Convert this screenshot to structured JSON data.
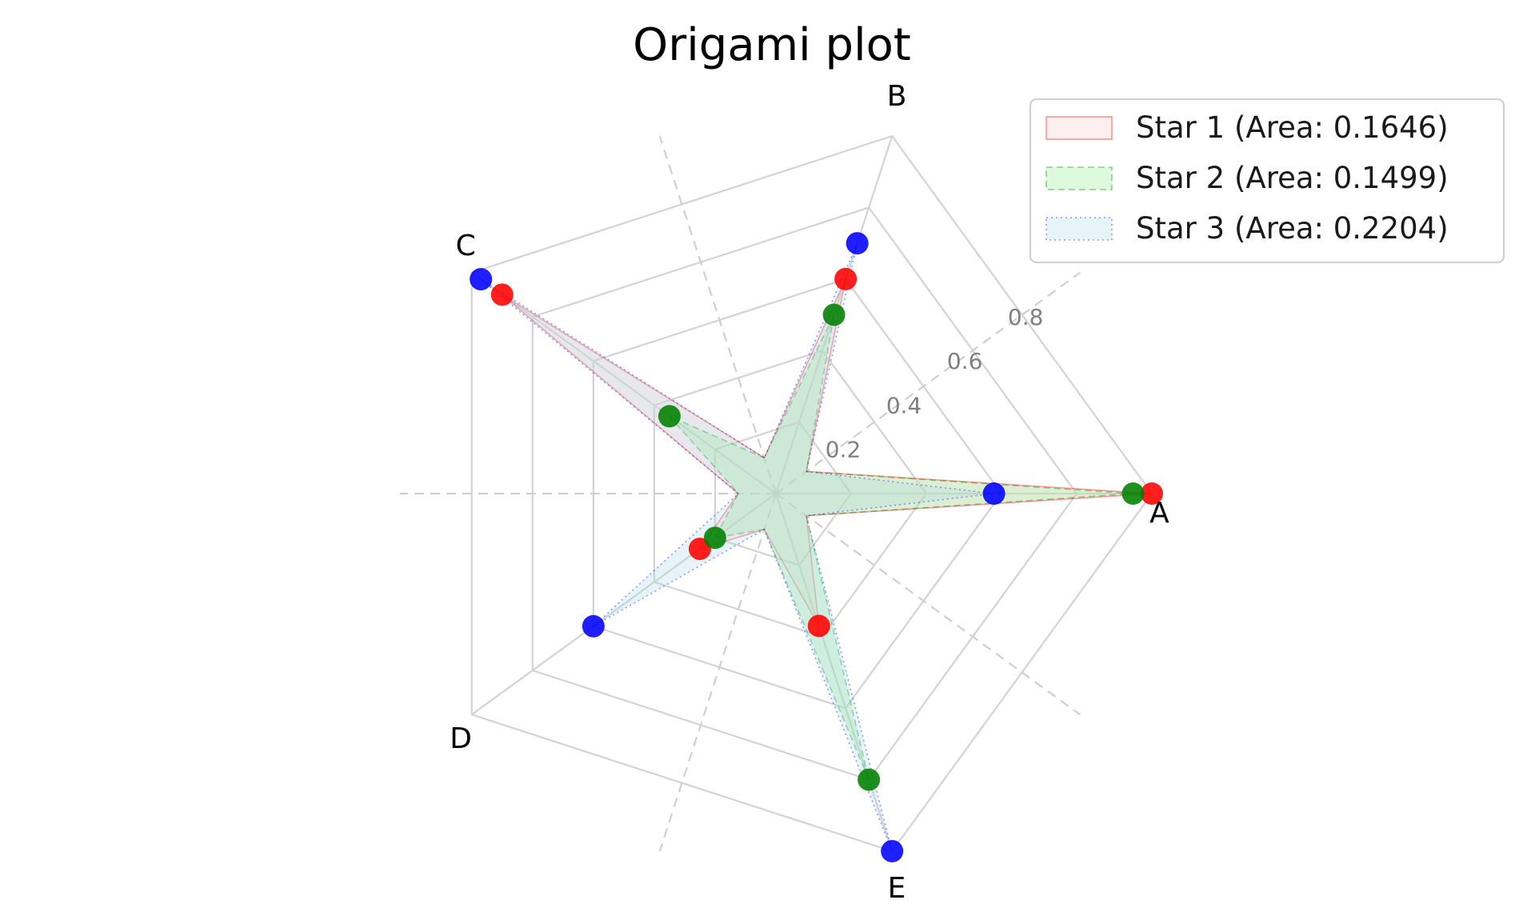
{
  "chart_data": {
    "type": "radar",
    "title": "Origami plot",
    "axes": [
      "A",
      "B",
      "C",
      "D",
      "E"
    ],
    "rlim": [
      0,
      1
    ],
    "rticks": [
      0.2,
      0.4,
      0.6,
      0.8
    ],
    "rtick_labels": [
      "0.2",
      "0.4",
      "0.6",
      "0.8"
    ],
    "grid": true,
    "legend_position": "top-right",
    "series": [
      {
        "name": "Star 1 (Area: 0.1646)",
        "values": [
          1.0,
          0.6,
          0.9,
          0.25,
          0.37
        ],
        "color": "#ff0000",
        "fill": "#ffcccc",
        "line_style": "solid"
      },
      {
        "name": "Star 2 (Area: 0.1499)",
        "values": [
          0.95,
          0.5,
          0.35,
          0.2,
          0.8
        ],
        "color": "#008000",
        "fill": "#90ee90",
        "line_style": "dashed"
      },
      {
        "name": "Star 3 (Area: 0.2204)",
        "values": [
          0.58,
          0.7,
          0.97,
          0.6,
          1.0
        ],
        "color": "#0000ff",
        "fill": "#add8e6",
        "line_style": "dotted"
      }
    ]
  }
}
